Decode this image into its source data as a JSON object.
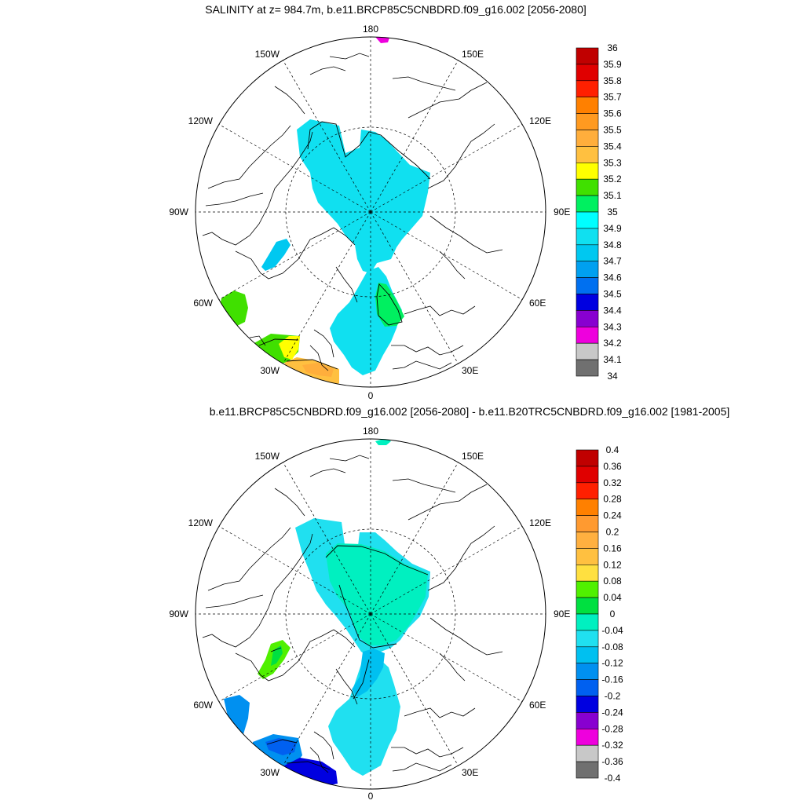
{
  "chart_data": [
    {
      "type": "heatmap",
      "projection": "north-polar-stereographic",
      "title": "SALINITY at z= 984.7m, b.e11.BRCP85C5CNBDRD.f09_g16.002 [2056-2080]",
      "lon_labels": [
        "180",
        "150E",
        "120E",
        "90E",
        "60E",
        "30E",
        "0",
        "30W",
        "60W",
        "90W",
        "120W",
        "150W"
      ],
      "legend": {
        "labels": [
          "36",
          "35.9",
          "35.8",
          "35.7",
          "35.6",
          "35.5",
          "35.4",
          "35.3",
          "35.2",
          "35.1",
          "35",
          "34.9",
          "34.8",
          "34.7",
          "34.6",
          "34.5",
          "34.4",
          "34.3",
          "34.2",
          "34.1",
          "34"
        ],
        "colors": [
          "#c00000",
          "#e00000",
          "#ff2000",
          "#ff8000",
          "#ff9a20",
          "#ffae3c",
          "#ffc040",
          "#ffff00",
          "#40e000",
          "#00f060",
          "#00ffff",
          "#10e0f0",
          "#00c8f0",
          "#00a0f0",
          "#0070f0",
          "#0000e0",
          "#8800d0",
          "#ee00dd",
          "#c8c8c8",
          "#707070"
        ]
      },
      "regions": [
        {
          "name": "arctic-basin",
          "value": 34.9,
          "color": "#10e0f0"
        },
        {
          "name": "greenland-norwegian-sea",
          "value": 34.9,
          "color": "#10e0f0"
        },
        {
          "name": "norwegian-sea-core",
          "value": 35.0,
          "color": "#00f060"
        },
        {
          "name": "baffin-bay",
          "value": 34.8,
          "color": "#00c8f0"
        },
        {
          "name": "labrador-sea",
          "value": 35.1,
          "color": "#40e000"
        },
        {
          "name": "north-atlantic-west",
          "value": 35.1,
          "color": "#40e000"
        },
        {
          "name": "north-atlantic-mid",
          "value": 35.2,
          "color": "#ffff00"
        },
        {
          "name": "north-atlantic-east",
          "value": 35.3,
          "color": "#ffc040"
        },
        {
          "name": "north-atlantic-east-core",
          "value": 35.4,
          "color": "#ffae3c"
        },
        {
          "name": "north-pacific-spot",
          "value": 34.3,
          "color": "#ee00dd"
        }
      ]
    },
    {
      "type": "heatmap",
      "projection": "north-polar-stereographic",
      "title": "b.e11.BRCP85C5CNBDRD.f09_g16.002 [2056-2080] - b.e11.B20TRC5CNBDRD.f09_g16.002 [1981-2005]",
      "lon_labels": [
        "180",
        "150E",
        "120E",
        "90E",
        "60E",
        "30E",
        "0",
        "30W",
        "60W",
        "90W",
        "120W",
        "150W"
      ],
      "legend": {
        "labels": [
          "0.4",
          "0.36",
          "0.32",
          "0.28",
          "0.24",
          "0.2",
          "0.16",
          "0.12",
          "0.08",
          "0.04",
          "0",
          "-0.04",
          "-0.08",
          "-0.12",
          "-0.16",
          "-0.2",
          "-0.24",
          "-0.28",
          "-0.32",
          "-0.36",
          "-0.4"
        ],
        "colors": [
          "#c00000",
          "#e00000",
          "#ff2000",
          "#ff8000",
          "#ff9a30",
          "#ffb040",
          "#ffc040",
          "#ffe040",
          "#50f000",
          "#00e040",
          "#00f0c0",
          "#20e0f0",
          "#00c0f0",
          "#0090f0",
          "#0060f0",
          "#0000e0",
          "#8800d0",
          "#ee00dd",
          "#c8c8c8",
          "#707070"
        ]
      },
      "regions": [
        {
          "name": "arctic-basin-fringe",
          "value": -0.06,
          "color": "#20e0f0"
        },
        {
          "name": "arctic-basin-core",
          "value": -0.02,
          "color": "#00f0c0"
        },
        {
          "name": "greenland-norwegian-sea",
          "value": -0.06,
          "color": "#20e0f0"
        },
        {
          "name": "fram-strait",
          "value": -0.1,
          "color": "#00c0f0"
        },
        {
          "name": "baffin-bay",
          "value": 0.06,
          "color": "#50f000"
        },
        {
          "name": "baffin-bay-core",
          "value": 0.02,
          "color": "#00e040"
        },
        {
          "name": "labrador-sea",
          "value": -0.14,
          "color": "#0090f0"
        },
        {
          "name": "north-atlantic-mid",
          "value": -0.14,
          "color": "#0090f0"
        },
        {
          "name": "north-atlantic-mid-core",
          "value": -0.18,
          "color": "#0060f0"
        },
        {
          "name": "north-atlantic-east",
          "value": -0.22,
          "color": "#0000e0"
        },
        {
          "name": "north-pacific-spot",
          "value": -0.02,
          "color": "#00f0c0"
        }
      ]
    }
  ]
}
